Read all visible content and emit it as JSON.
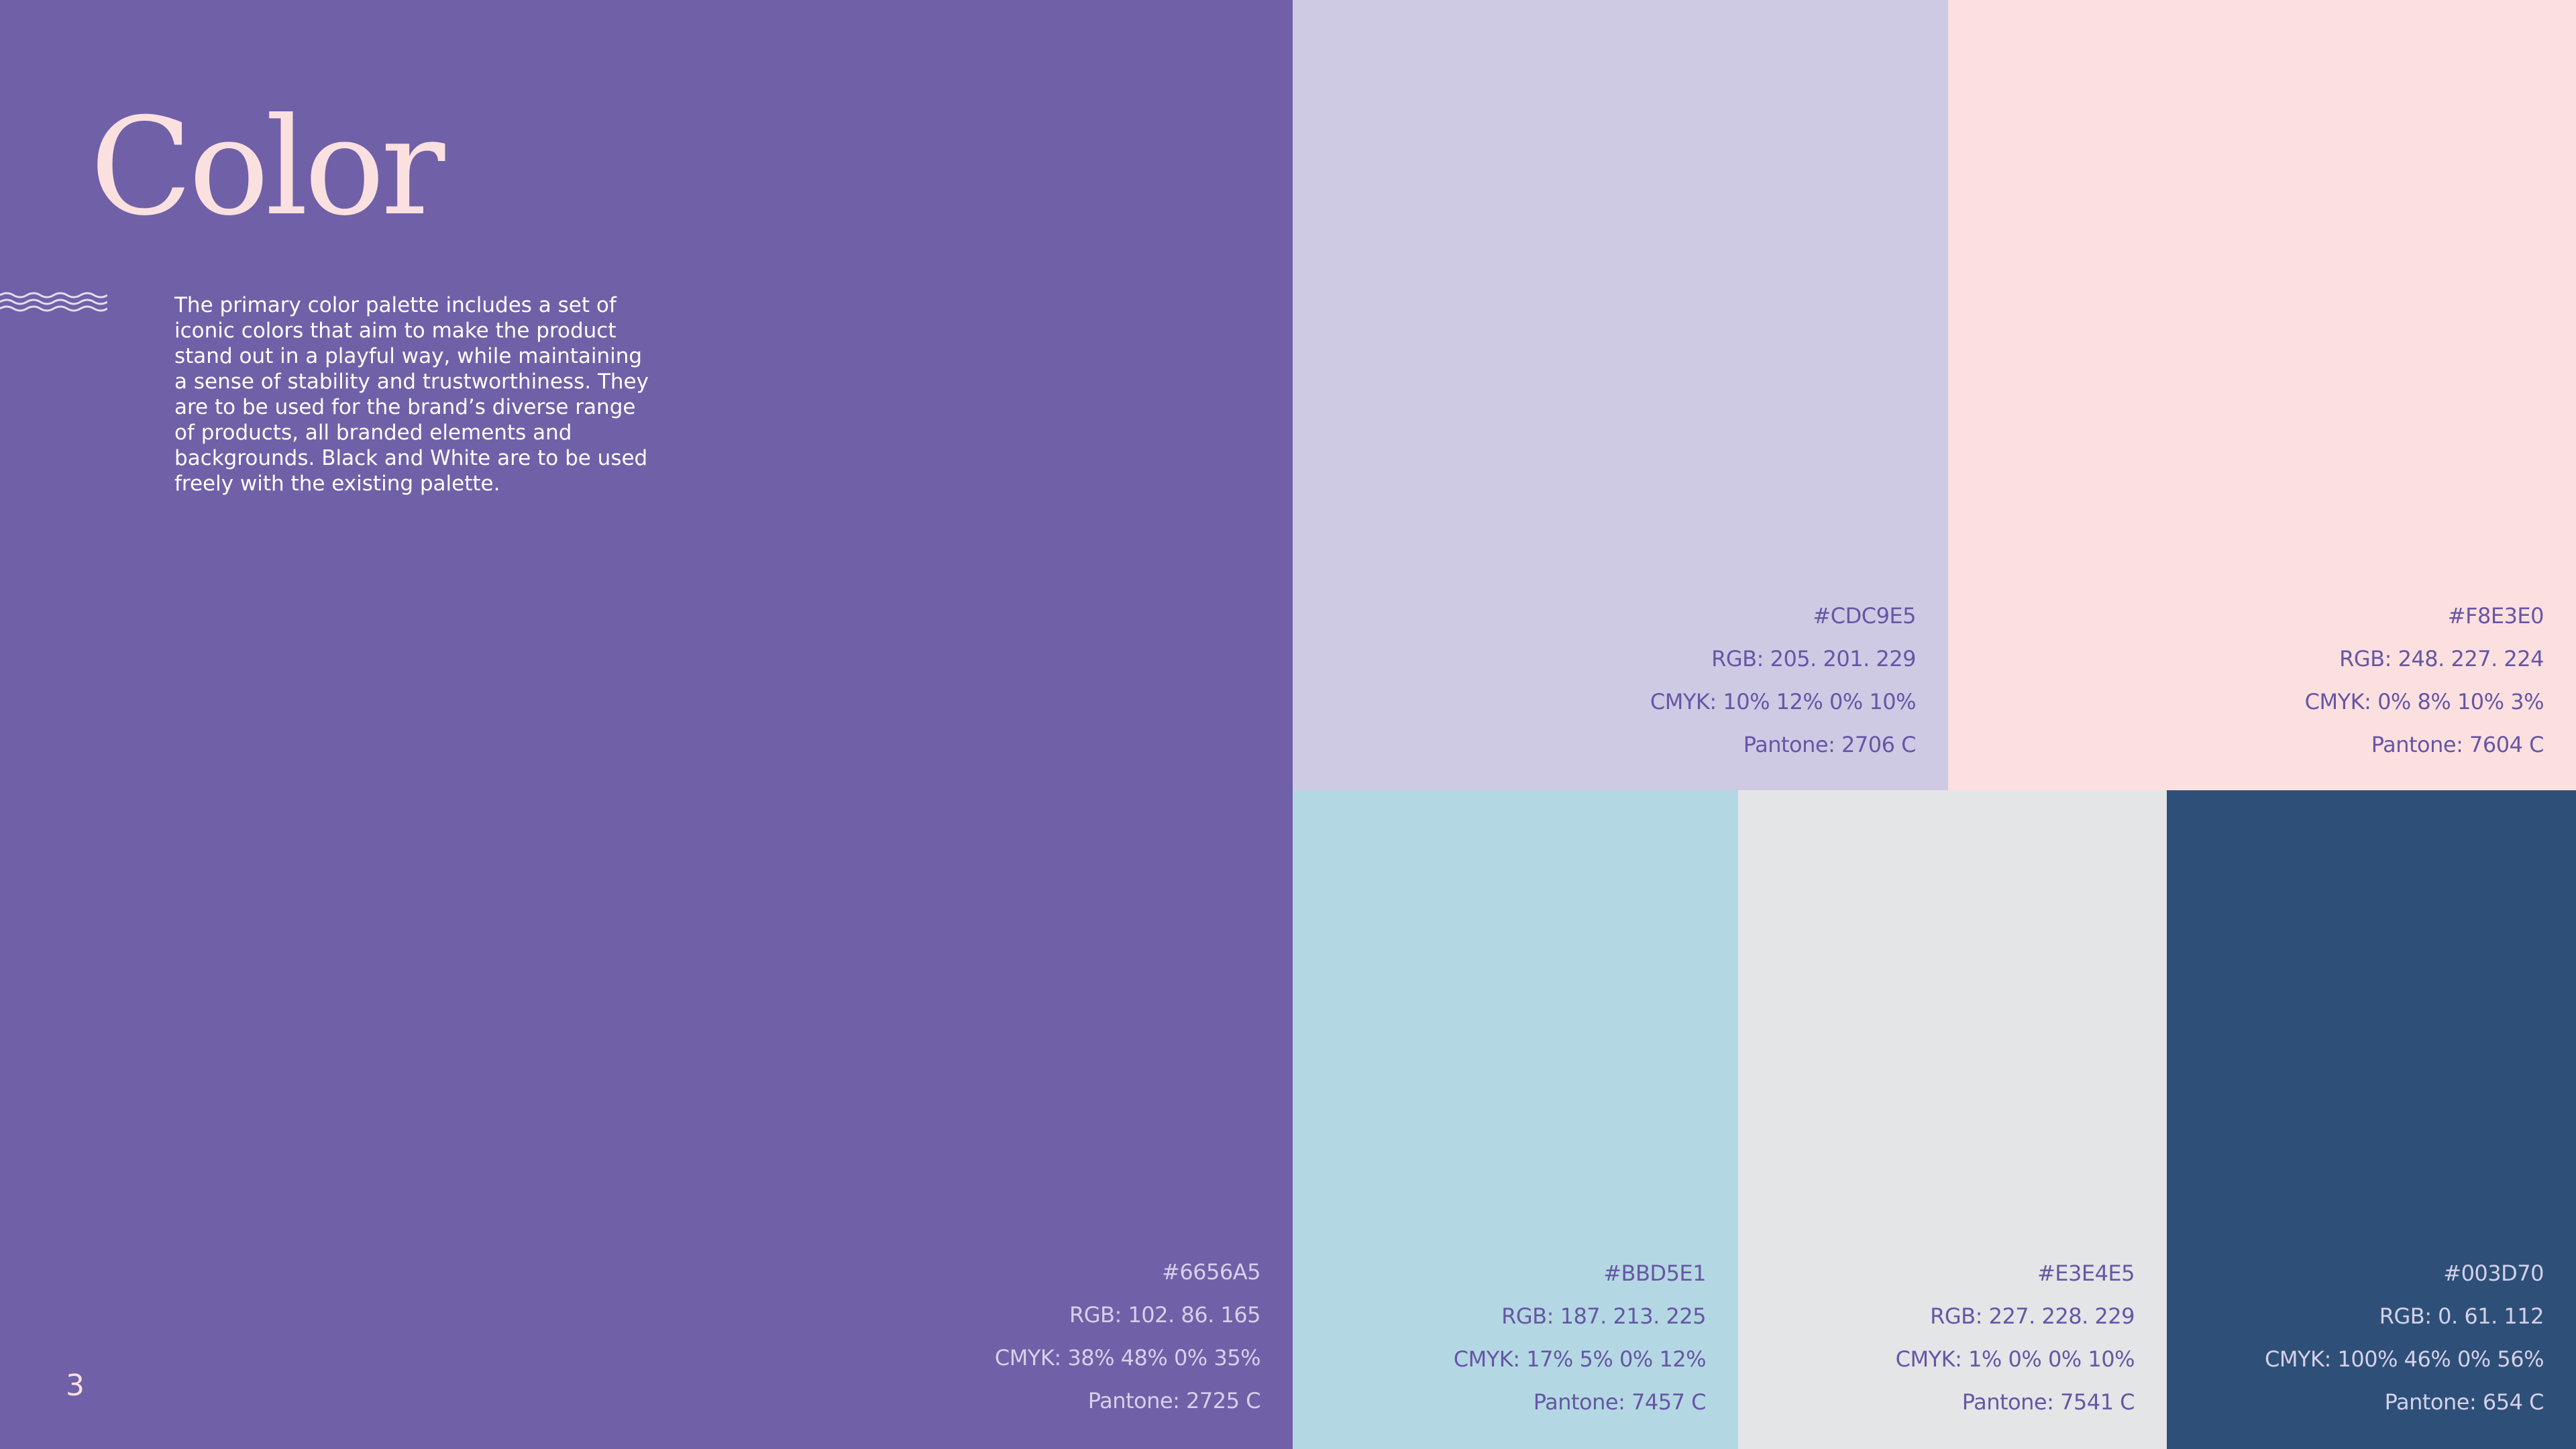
{
  "title": "Color",
  "description": "The primary color palette includes a set of iconic colors that aim to make the product stand out in a playful way, while maintaining a sense of stability and trustworthiness. They are to be used for the brand’s diverse range of products, all branded elements and backgrounds. Black and White are to be used freely with the existing palette.",
  "page_number": "3",
  "swatches": [
    {
      "hex": "#6656A5",
      "rgb": "RGB: 102. 86. 165",
      "cmyk": "CMYK: 38% 48% 0% 35%",
      "pantone": "Pantone: 2725 C",
      "color": "#7060A8",
      "text_color": "#D6D0EA"
    },
    {
      "hex": "#CDC9E5",
      "rgb": "RGB: 205. 201. 229",
      "cmyk": "CMYK: 10% 12% 0% 10%",
      "pantone": "Pantone: 2706 C",
      "color": "#CFCAE4",
      "text_color": "#6656A5"
    },
    {
      "hex": "#F8E3E0",
      "rgb": "RGB: 248. 227. 224",
      "cmyk": "CMYK: 0% 8% 10% 3%",
      "pantone": "Pantone: 7604 C",
      "color": "#FCE0E0",
      "text_color": "#6656A5"
    },
    {
      "hex": "#BBD5E1",
      "rgb": "RGB: 187. 213. 225",
      "cmyk": "CMYK: 17% 5% 0% 12%",
      "pantone": "Pantone: 7457 C",
      "color": "#B4D8E3",
      "text_color": "#6656A5"
    },
    {
      "hex": "#E3E4E5",
      "rgb": "RGB: 227. 228. 229",
      "cmyk": "CMYK: 1% 0% 0% 10%",
      "pantone": "Pantone: 7541 C",
      "color": "#E4E5E7",
      "text_color": "#6656A5"
    },
    {
      "hex": "#003D70",
      "rgb": "RGB: 0. 61. 112",
      "cmyk": "CMYK: 100% 46% 0% 56%",
      "pantone": "Pantone: 654 C",
      "color": "#2E5078",
      "text_color": "#D6D0EA"
    }
  ]
}
